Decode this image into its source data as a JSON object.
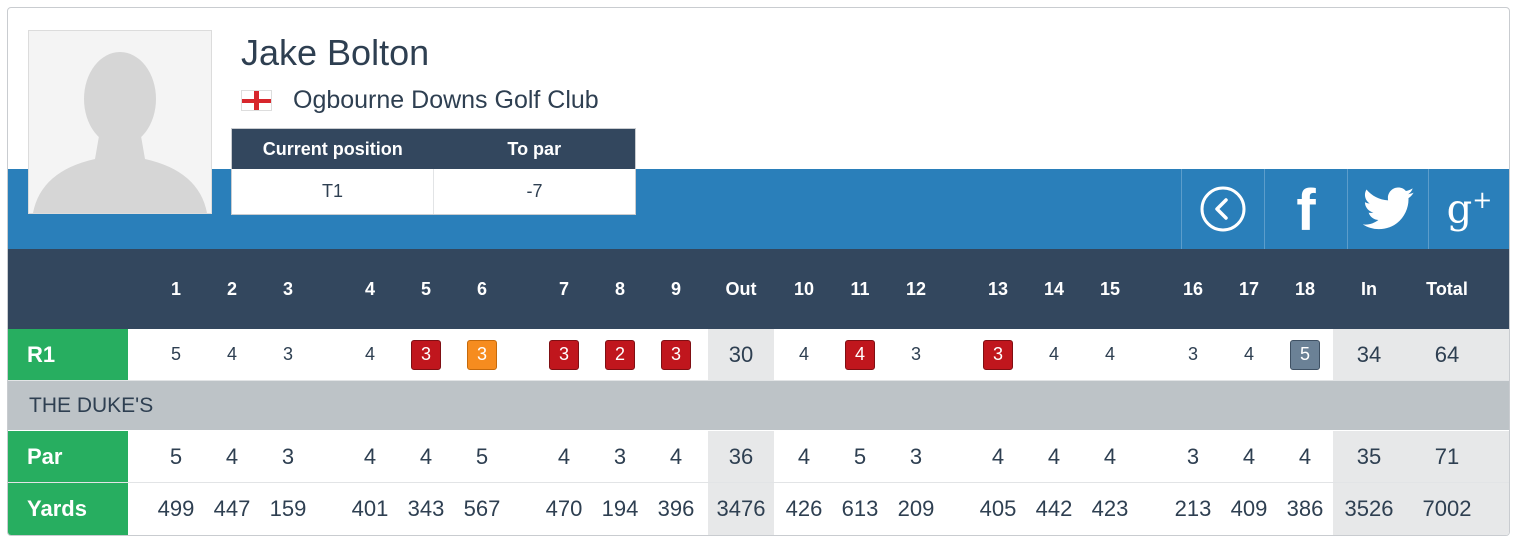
{
  "player": {
    "name": "Jake Bolton",
    "club": "Ogbourne Downs Golf Club",
    "flag_icon": "england-flag-icon"
  },
  "position": {
    "current_position_label": "Current position",
    "to_par_label": "To par",
    "current_position": "T1",
    "to_par": "-7"
  },
  "social": {
    "back_icon": "back-circle-icon",
    "facebook_icon": "facebook-icon",
    "facebook_glyph": "f",
    "twitter_icon": "twitter-icon",
    "googleplus_icon": "google-plus-icon",
    "googleplus_glyph": "g",
    "googleplus_sup": "+"
  },
  "scorecard": {
    "columns": [
      "1",
      "2",
      "3",
      "4",
      "5",
      "6",
      "7",
      "8",
      "9",
      "Out",
      "10",
      "11",
      "12",
      "13",
      "14",
      "15",
      "16",
      "17",
      "18",
      "In",
      "Total"
    ],
    "round_label": "R1",
    "round_scores": [
      {
        "v": "5",
        "s": "par"
      },
      {
        "v": "4",
        "s": "par"
      },
      {
        "v": "3",
        "s": "par"
      },
      {
        "v": "4",
        "s": "par"
      },
      {
        "v": "3",
        "s": "birdie"
      },
      {
        "v": "3",
        "s": "eagle"
      },
      {
        "v": "3",
        "s": "birdie"
      },
      {
        "v": "2",
        "s": "birdie"
      },
      {
        "v": "3",
        "s": "birdie"
      },
      {
        "v": "30",
        "s": "sum"
      },
      {
        "v": "4",
        "s": "par"
      },
      {
        "v": "4",
        "s": "birdie"
      },
      {
        "v": "3",
        "s": "par"
      },
      {
        "v": "3",
        "s": "birdie"
      },
      {
        "v": "4",
        "s": "par"
      },
      {
        "v": "4",
        "s": "par"
      },
      {
        "v": "3",
        "s": "par"
      },
      {
        "v": "4",
        "s": "par"
      },
      {
        "v": "5",
        "s": "bogey"
      },
      {
        "v": "34",
        "s": "sum"
      },
      {
        "v": "64",
        "s": "sum"
      }
    ],
    "course_name": "THE DUKE'S",
    "par_label": "Par",
    "par_values": [
      "5",
      "4",
      "3",
      "4",
      "4",
      "5",
      "4",
      "3",
      "4",
      "36",
      "4",
      "5",
      "3",
      "4",
      "4",
      "4",
      "3",
      "4",
      "4",
      "35",
      "71"
    ],
    "yards_label": "Yards",
    "yards_values": [
      "499",
      "447",
      "159",
      "401",
      "343",
      "567",
      "470",
      "194",
      "396",
      "3476",
      "426",
      "613",
      "209",
      "405",
      "442",
      "423",
      "213",
      "409",
      "386",
      "3526",
      "7002"
    ],
    "colors": {
      "header": "#33475e",
      "band": "#2a7fba",
      "label_green": "#27ae60",
      "birdie": "#c0161d",
      "eagle": "#f68c1f",
      "bogey": "#6b8196",
      "course_row": "#bdc3c7",
      "summary_bg": "#e7e8e9"
    }
  }
}
